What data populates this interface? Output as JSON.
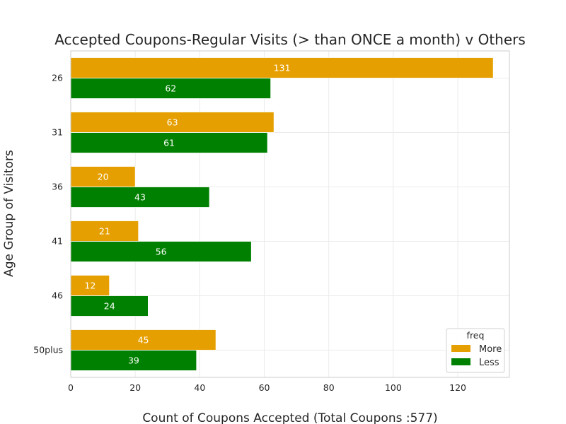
{
  "chart_data": {
    "type": "bar",
    "orientation": "horizontal",
    "title": "Accepted Coupons-Regular Visits (> than ONCE a month) v Others",
    "xlabel": "Count of Coupons Accepted (Total Coupons :577)",
    "ylabel": "Age Group of Visitors",
    "categories": [
      "26",
      "31",
      "36",
      "41",
      "46",
      "50plus"
    ],
    "series": [
      {
        "name": "More",
        "color": "#e69f00",
        "values": [
          131,
          63,
          20,
          21,
          12,
          45
        ]
      },
      {
        "name": "Less",
        "color": "#008000",
        "values": [
          62,
          61,
          43,
          56,
          24,
          39
        ]
      }
    ],
    "xlim": [
      0,
      136
    ],
    "xticks": [
      0,
      20,
      40,
      60,
      80,
      100,
      120
    ],
    "grid": true,
    "legend": {
      "title": "freq",
      "position": "lower-right"
    }
  }
}
